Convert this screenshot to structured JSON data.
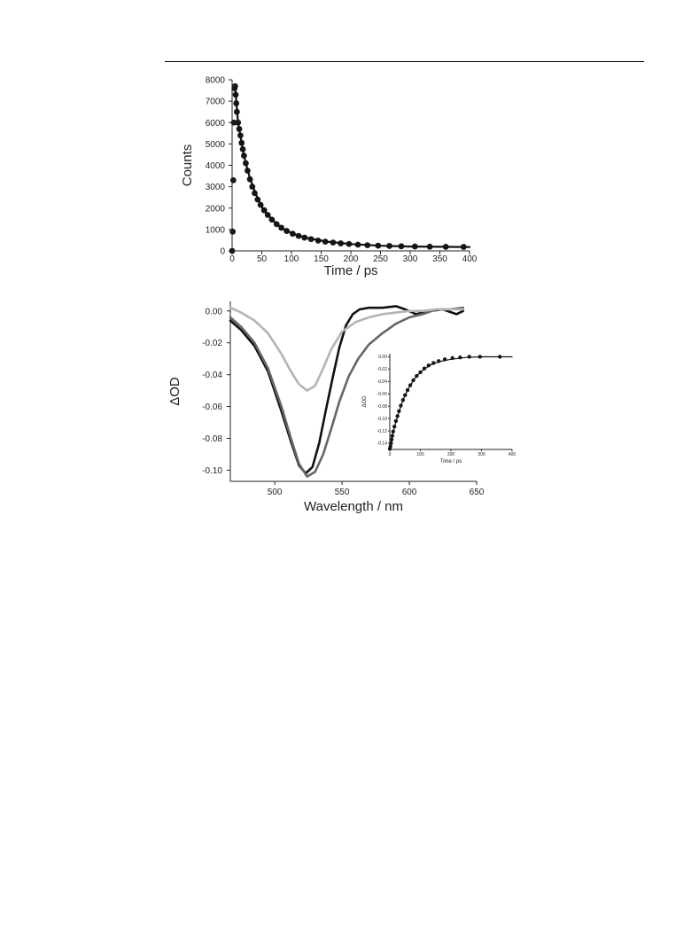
{
  "page": {
    "header_rule": true
  },
  "colors": {
    "black": "#111111",
    "dark_gray": "#666666",
    "light_gray": "#b4b4b4",
    "axis": "#222222"
  },
  "chart_data": [
    {
      "id": "decay",
      "type": "scatter",
      "xlabel": "Time / ps",
      "ylabel": "Counts",
      "xlim": [
        0,
        400
      ],
      "ylim": [
        0,
        8000
      ],
      "xticks": [
        "0",
        "50",
        "100",
        "150",
        "200",
        "250",
        "300",
        "350",
        "400"
      ],
      "yticks": [
        "0",
        "1000",
        "2000",
        "3000",
        "4000",
        "5000",
        "6000",
        "7000",
        "8000"
      ],
      "series": [
        {
          "role": "data",
          "style": "markers",
          "x": [
            0,
            1,
            2,
            3,
            4,
            5,
            6,
            7,
            8,
            10,
            12,
            14,
            16,
            18,
            20,
            23,
            26,
            30,
            34,
            38,
            43,
            48,
            54,
            60,
            67,
            75,
            83,
            92,
            102,
            112,
            122,
            133,
            145,
            157,
            170,
            183,
            197,
            212,
            228,
            246,
            265,
            285,
            308,
            333,
            360,
            390
          ],
          "y": [
            0,
            900,
            3300,
            6000,
            7600,
            7700,
            7300,
            6900,
            6500,
            6000,
            5700,
            5400,
            5050,
            4750,
            4450,
            4100,
            3750,
            3350,
            3000,
            2700,
            2400,
            2150,
            1900,
            1680,
            1460,
            1250,
            1080,
            930,
            800,
            700,
            620,
            550,
            480,
            430,
            390,
            350,
            320,
            290,
            265,
            245,
            230,
            215,
            205,
            195,
            190,
            185
          ]
        },
        {
          "role": "fit",
          "style": "line",
          "x": [
            5,
            10,
            15,
            20,
            25,
            30,
            40,
            50,
            60,
            75,
            90,
            110,
            130,
            160,
            200,
            250,
            300,
            350,
            400
          ],
          "y": [
            7650,
            6000,
            5200,
            4450,
            3900,
            3400,
            2650,
            2050,
            1680,
            1250,
            960,
            720,
            580,
            430,
            320,
            240,
            205,
            190,
            180
          ]
        }
      ]
    },
    {
      "id": "transient",
      "type": "line",
      "xlabel": "Wavelength / nm",
      "ylabel": "ΔOD",
      "xlim": [
        467,
        650
      ],
      "ylim": [
        -0.107,
        0.006
      ],
      "xticks": [
        "500",
        "550",
        "600",
        "650"
      ],
      "yticks": [
        "0.00",
        "-0.02",
        "-0.04",
        "-0.06",
        "-0.08",
        "-0.10"
      ],
      "series": [
        {
          "color": "#111111",
          "x": [
            467,
            475,
            485,
            495,
            505,
            512,
            518,
            523,
            528,
            533,
            538,
            543,
            548,
            553,
            558,
            563,
            570,
            580,
            590,
            597,
            605,
            615,
            625,
            635,
            640
          ],
          "y": [
            -0.006,
            -0.012,
            -0.022,
            -0.038,
            -0.063,
            -0.082,
            -0.097,
            -0.102,
            -0.098,
            -0.083,
            -0.062,
            -0.042,
            -0.023,
            -0.009,
            -0.002,
            0.001,
            0.002,
            0.002,
            0.003,
            0.001,
            -0.002,
            0.0,
            0.001,
            -0.002,
            0.0
          ]
        },
        {
          "color": "#666666",
          "x": [
            467,
            475,
            485,
            495,
            505,
            512,
            518,
            524,
            530,
            536,
            542,
            548,
            555,
            562,
            570,
            580,
            590,
            600,
            610,
            620,
            630,
            640
          ],
          "y": [
            -0.004,
            -0.01,
            -0.02,
            -0.036,
            -0.06,
            -0.08,
            -0.096,
            -0.104,
            -0.101,
            -0.09,
            -0.074,
            -0.057,
            -0.041,
            -0.03,
            -0.021,
            -0.014,
            -0.008,
            -0.004,
            -0.002,
            0.001,
            0.001,
            0.002
          ]
        },
        {
          "color": "#b4b4b4",
          "x": [
            467,
            475,
            485,
            495,
            505,
            512,
            518,
            524,
            530,
            536,
            542,
            550,
            560,
            570,
            580,
            590,
            600,
            610,
            620,
            630,
            640
          ],
          "y": [
            0.002,
            -0.001,
            -0.006,
            -0.014,
            -0.027,
            -0.038,
            -0.046,
            -0.05,
            -0.047,
            -0.036,
            -0.024,
            -0.013,
            -0.007,
            -0.004,
            -0.002,
            -0.001,
            0.0,
            0.0,
            0.001,
            0.001,
            0.001
          ]
        }
      ]
    },
    {
      "id": "inset",
      "type": "scatter",
      "xlabel": "Time / ps",
      "ylabel": "ΔOD",
      "xlim": [
        0,
        400
      ],
      "ylim": [
        -0.15,
        0.005
      ],
      "xticks": [
        "0",
        "100",
        "200",
        "300",
        "400"
      ],
      "yticks": [
        "0.00",
        "-0.02",
        "-0.04",
        "-0.06",
        "-0.08",
        "-0.10",
        "-0.12",
        "-0.14"
      ],
      "series": [
        {
          "role": "data",
          "style": "markers",
          "x": [
            0,
            2,
            4,
            6,
            8,
            11,
            15,
            20,
            25,
            30,
            36,
            43,
            50,
            58,
            67,
            77,
            88,
            100,
            113,
            127,
            143,
            160,
            180,
            205,
            230,
            260,
            295,
            360
          ],
          "y": [
            -0.149,
            -0.145,
            -0.14,
            -0.134,
            -0.128,
            -0.121,
            -0.113,
            -0.104,
            -0.096,
            -0.088,
            -0.079,
            -0.07,
            -0.062,
            -0.054,
            -0.046,
            -0.038,
            -0.031,
            -0.025,
            -0.019,
            -0.014,
            -0.01,
            -0.007,
            -0.004,
            -0.002,
            -0.001,
            0.0,
            0.0,
            0.0
          ]
        },
        {
          "role": "fit",
          "style": "line",
          "x": [
            0,
            5,
            10,
            20,
            30,
            45,
            60,
            80,
            100,
            130,
            160,
            200,
            250,
            300,
            400
          ],
          "y": [
            -0.149,
            -0.137,
            -0.124,
            -0.105,
            -0.089,
            -0.068,
            -0.052,
            -0.036,
            -0.025,
            -0.014,
            -0.008,
            -0.004,
            -0.001,
            0.0,
            0.0
          ]
        }
      ]
    }
  ]
}
